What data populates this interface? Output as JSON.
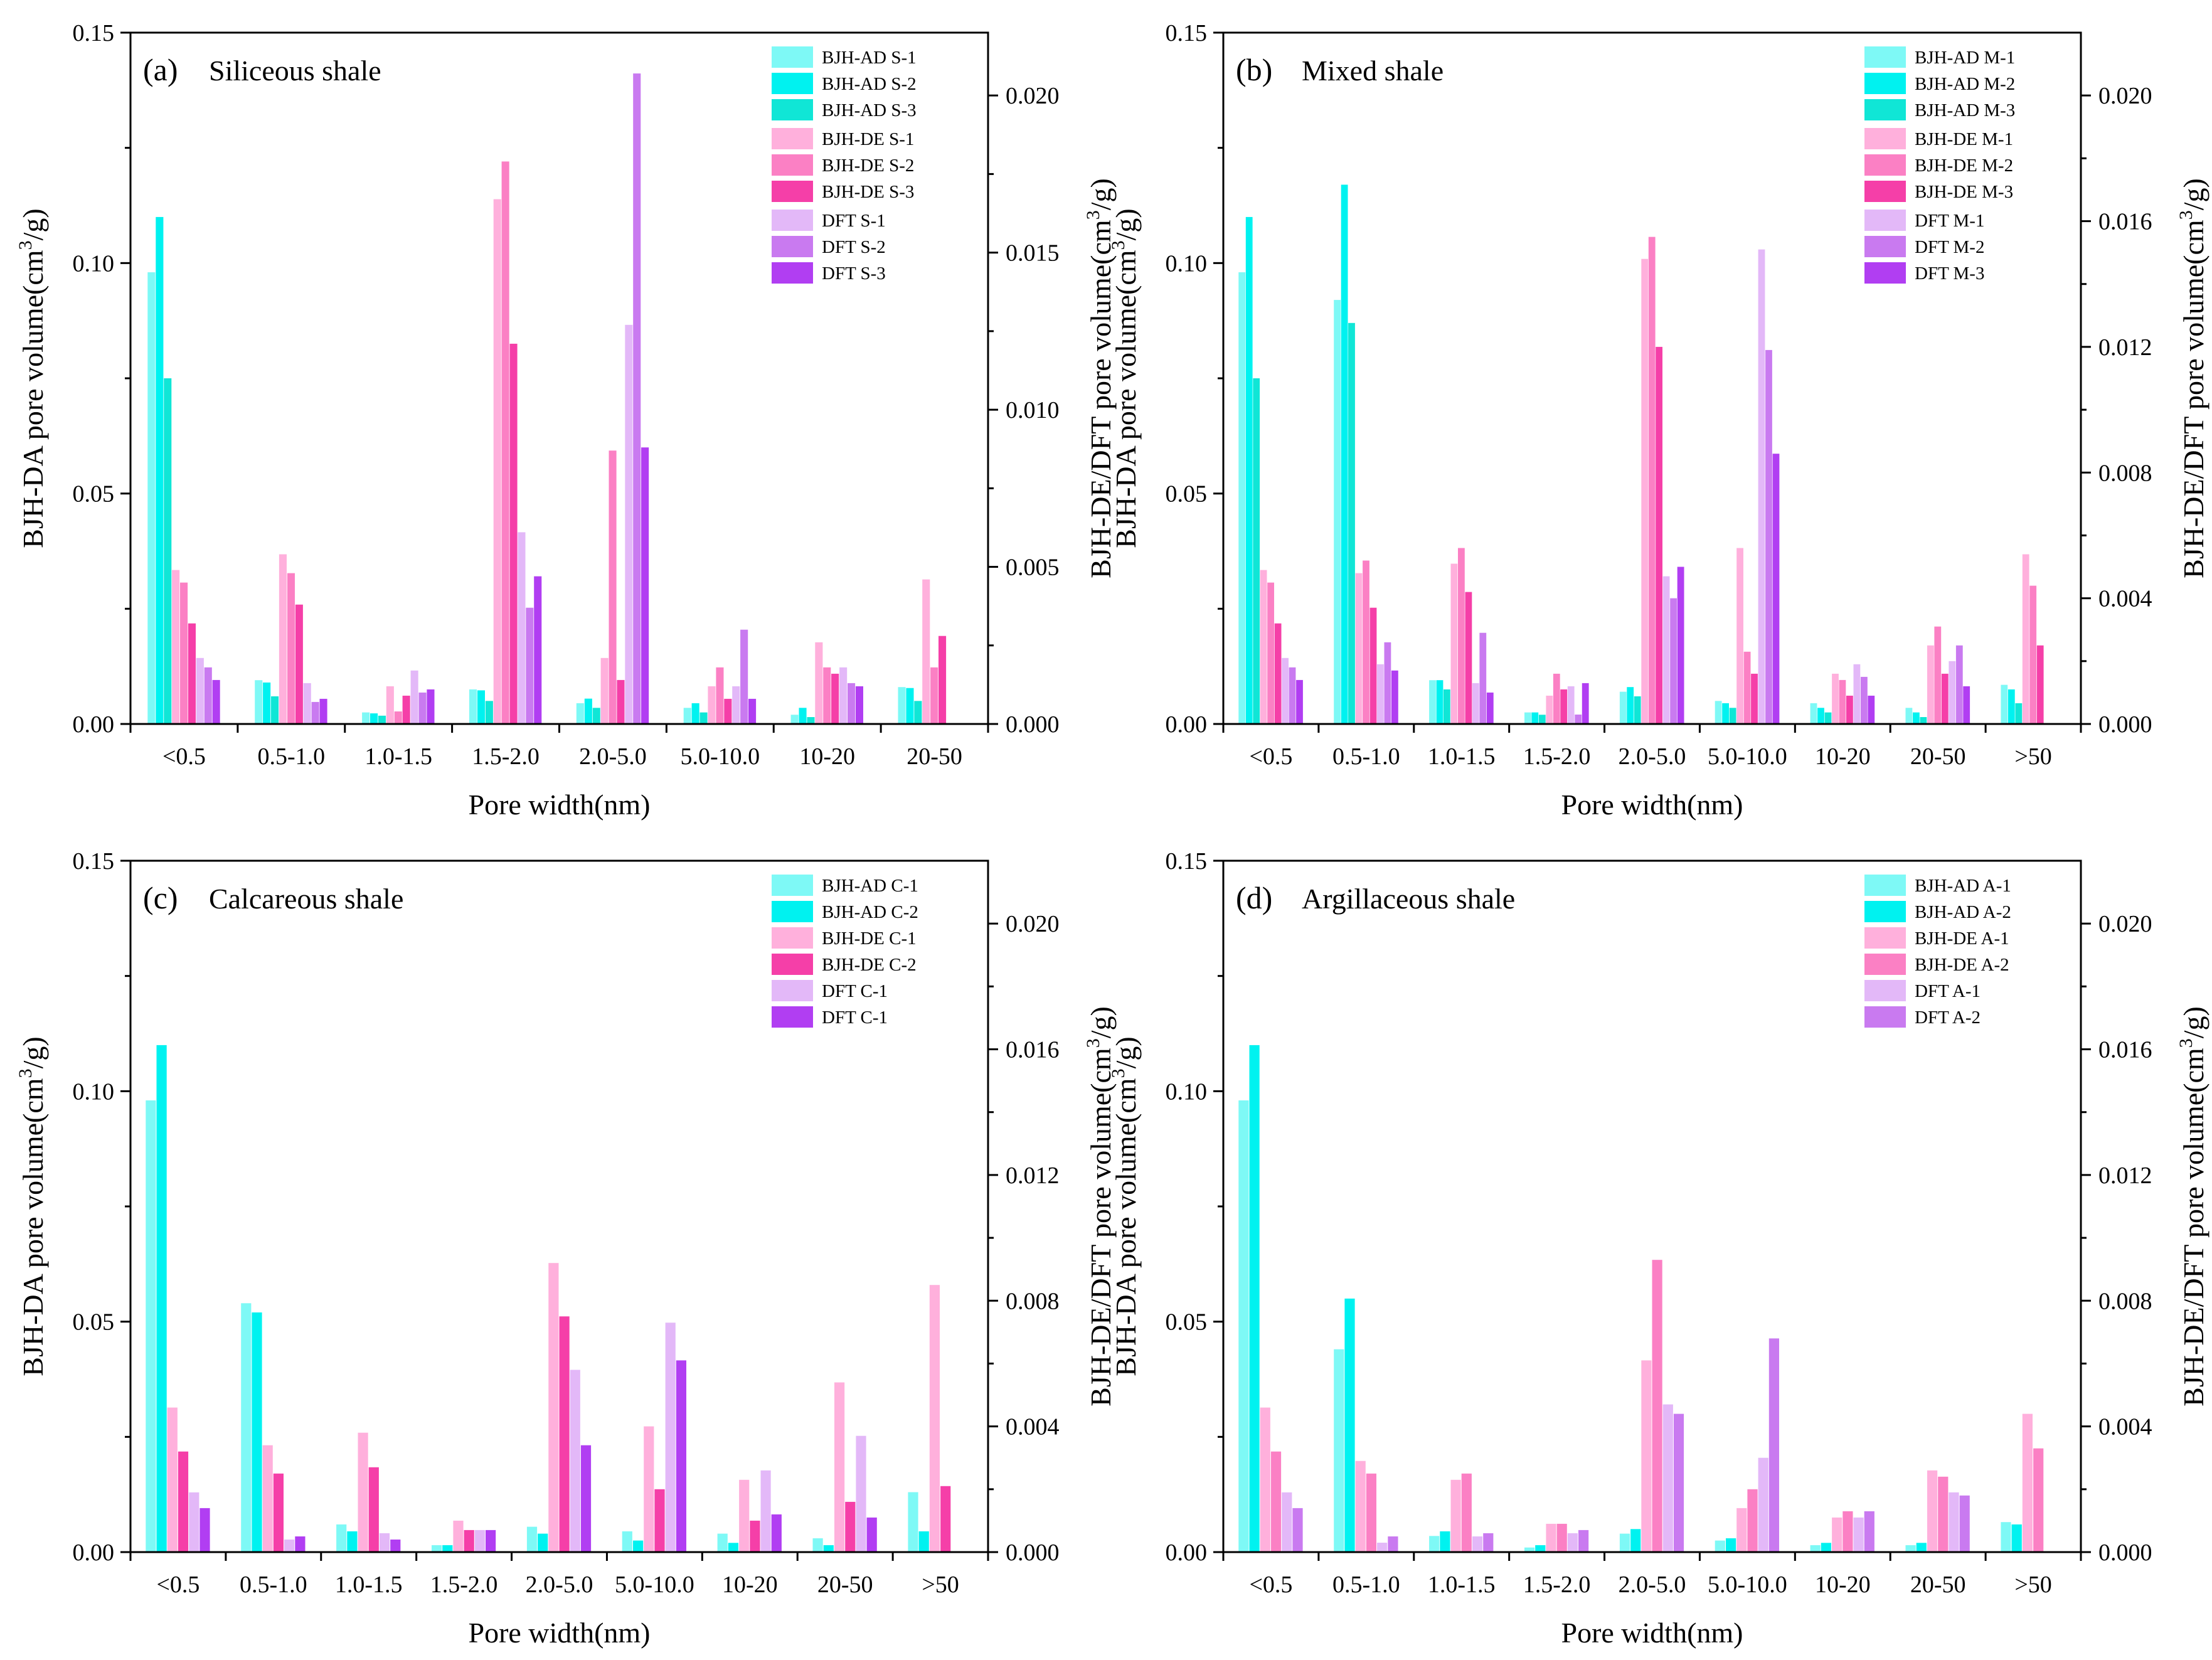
{
  "colors": {
    "BJH-AD-1": "#7ef9f6",
    "BJH-AD-2": "#00f2f0",
    "BJH-AD-3": "#10e6d6",
    "BJH-DE-1": "#ffb0dc",
    "BJH-DE-2": "#fb80c4",
    "BJH-DE-3": "#f53fa8",
    "DFT-1": "#e3b8f8",
    "DFT-2": "#c97af0",
    "DFT-3": "#b13ef2"
  },
  "chart_data": [
    {
      "type": "bar",
      "panel": "(a)",
      "title": "Siliceous shale",
      "xlabel": "Pore width(nm)",
      "ylabel_left": "BJH-DA pore volume(cm3/g)",
      "ylabel_right": "BJH-DE/DFT pore volume(cm3/g)",
      "ylim_left": [
        0,
        0.15
      ],
      "ylim_right": [
        0,
        0.022
      ],
      "yticks_left": [
        "0.00",
        "0.05",
        "0.10",
        "0.15"
      ],
      "yticks_right": [
        "0.000",
        "0.005",
        "0.010",
        "0.015",
        "0.020"
      ],
      "categories": [
        "<0.5",
        "0.5-1.0",
        "1.0-1.5",
        "1.5-2.0",
        "2.0-5.0",
        "5.0-10.0",
        "10-20",
        "20-50"
      ],
      "series": [
        {
          "name": "BJH-AD S-1",
          "group": "BJH-AD",
          "axis": "left",
          "color_key": "BJH-AD-1",
          "values": [
            0.098,
            0.0095,
            0.0025,
            0.0075,
            0.0045,
            0.0035,
            0.002,
            0.008
          ]
        },
        {
          "name": "BJH-AD S-2",
          "group": "BJH-AD",
          "axis": "left",
          "color_key": "BJH-AD-2",
          "values": [
            0.11,
            0.009,
            0.0023,
            0.0073,
            0.0055,
            0.0045,
            0.0035,
            0.0078
          ]
        },
        {
          "name": "BJH-AD S-3",
          "group": "BJH-AD",
          "axis": "left",
          "color_key": "BJH-AD-3",
          "values": [
            0.075,
            0.006,
            0.0018,
            0.005,
            0.0035,
            0.0025,
            0.0015,
            0.005
          ]
        },
        {
          "name": "BJH-DE S-1",
          "group": "BJH-DE",
          "axis": "right",
          "color_key": "BJH-DE-1",
          "values": [
            0.0049,
            0.0054,
            0.0012,
            0.0167,
            0.0021,
            0.0012,
            0.0026,
            0.0046
          ]
        },
        {
          "name": "BJH-DE S-2",
          "group": "BJH-DE",
          "axis": "right",
          "color_key": "BJH-DE-2",
          "values": [
            0.0045,
            0.0048,
            0.0004,
            0.0179,
            0.0087,
            0.0018,
            0.0018,
            0.0018
          ]
        },
        {
          "name": "BJH-DE S-3",
          "group": "BJH-DE",
          "axis": "right",
          "color_key": "BJH-DE-3",
          "values": [
            0.0032,
            0.0038,
            0.0009,
            0.0121,
            0.0014,
            0.0008,
            0.0016,
            0.0028
          ]
        },
        {
          "name": "DFT S-1",
          "group": "DFT",
          "axis": "right",
          "color_key": "DFT-1",
          "values": [
            0.0021,
            0.0013,
            0.0017,
            0.0061,
            0.0127,
            0.0012,
            0.0018,
            0.0
          ]
        },
        {
          "name": "DFT S-2",
          "group": "DFT",
          "axis": "right",
          "color_key": "DFT-2",
          "values": [
            0.0018,
            0.0007,
            0.001,
            0.0037,
            0.0207,
            0.003,
            0.0013,
            0.0
          ]
        },
        {
          "name": "DFT S-3",
          "group": "DFT",
          "axis": "right",
          "color_key": "DFT-3",
          "values": [
            0.0014,
            0.0008,
            0.0011,
            0.0047,
            0.0088,
            0.0008,
            0.0012,
            0.0
          ]
        }
      ]
    },
    {
      "type": "bar",
      "panel": "(b)",
      "title": "Mixed shale",
      "xlabel": "Pore width(nm)",
      "ylabel_left": "BJH-DA pore volume(cm3/g)",
      "ylabel_right": "BJH-DE/DFT pore volume(cm3/g)",
      "ylim_left": [
        0,
        0.15
      ],
      "ylim_right": [
        0,
        0.022
      ],
      "yticks_left": [
        "0.00",
        "0.05",
        "0.10",
        "0.15"
      ],
      "yticks_right": [
        "0.000",
        "0.004",
        "0.008",
        "0.012",
        "0.016",
        "0.020"
      ],
      "categories": [
        "<0.5",
        "0.5-1.0",
        "1.0-1.5",
        "1.5-2.0",
        "2.0-5.0",
        "5.0-10.0",
        "10-20",
        "20-50",
        ">50"
      ],
      "series": [
        {
          "name": "BJH-AD M-1",
          "group": "BJH-AD",
          "axis": "left",
          "color_key": "BJH-AD-1",
          "values": [
            0.098,
            0.092,
            0.0095,
            0.0025,
            0.007,
            0.005,
            0.0045,
            0.0035,
            0.0085
          ]
        },
        {
          "name": "BJH-AD M-2",
          "group": "BJH-AD",
          "axis": "left",
          "color_key": "BJH-AD-2",
          "values": [
            0.11,
            0.117,
            0.0095,
            0.0025,
            0.008,
            0.0045,
            0.0035,
            0.0025,
            0.0075
          ]
        },
        {
          "name": "BJH-AD M-3",
          "group": "BJH-AD",
          "axis": "left",
          "color_key": "BJH-AD-3",
          "values": [
            0.075,
            0.087,
            0.0075,
            0.002,
            0.006,
            0.0035,
            0.0025,
            0.0015,
            0.0045
          ]
        },
        {
          "name": "BJH-DE M-1",
          "group": "BJH-DE",
          "axis": "right",
          "color_key": "BJH-DE-1",
          "values": [
            0.0049,
            0.0048,
            0.0051,
            0.0009,
            0.0148,
            0.0056,
            0.0016,
            0.0025,
            0.0054
          ]
        },
        {
          "name": "BJH-DE M-2",
          "group": "BJH-DE",
          "axis": "right",
          "color_key": "BJH-DE-2",
          "values": [
            0.0045,
            0.0052,
            0.0056,
            0.0016,
            0.0155,
            0.0023,
            0.0014,
            0.0031,
            0.0044
          ]
        },
        {
          "name": "BJH-DE M-3",
          "group": "BJH-DE",
          "axis": "right",
          "color_key": "BJH-DE-3",
          "values": [
            0.0032,
            0.0037,
            0.0042,
            0.0011,
            0.012,
            0.0016,
            0.0009,
            0.0016,
            0.0025
          ]
        },
        {
          "name": "DFT M-1",
          "group": "DFT",
          "axis": "right",
          "color_key": "DFT-1",
          "values": [
            0.0021,
            0.0019,
            0.0013,
            0.0012,
            0.0047,
            0.0151,
            0.0019,
            0.002,
            0.0
          ]
        },
        {
          "name": "DFT M-2",
          "group": "DFT",
          "axis": "right",
          "color_key": "DFT-2",
          "values": [
            0.0018,
            0.0026,
            0.0029,
            0.0003,
            0.004,
            0.0119,
            0.0015,
            0.0025,
            0.0
          ]
        },
        {
          "name": "DFT M-3",
          "group": "DFT",
          "axis": "right",
          "color_key": "DFT-3",
          "values": [
            0.0014,
            0.0017,
            0.001,
            0.0013,
            0.005,
            0.0086,
            0.0009,
            0.0012,
            0.0
          ]
        }
      ]
    },
    {
      "type": "bar",
      "panel": "(c)",
      "title": "Calcareous shale",
      "xlabel": "Pore width(nm)",
      "ylabel_left": "BJH-DA pore volume(cm3/g)",
      "ylabel_right": "BJH-DE/DFT pore volume(cm3/g)",
      "ylim_left": [
        0,
        0.15
      ],
      "ylim_right": [
        0,
        0.022
      ],
      "yticks_left": [
        "0.00",
        "0.05",
        "0.10",
        "0.15"
      ],
      "yticks_right": [
        "0.000",
        "0.004",
        "0.008",
        "0.012",
        "0.016",
        "0.020"
      ],
      "categories": [
        "<0.5",
        "0.5-1.0",
        "1.0-1.5",
        "1.5-2.0",
        "2.0-5.0",
        "5.0-10.0",
        "10-20",
        "20-50",
        ">50"
      ],
      "series": [
        {
          "name": "BJH-AD C-1",
          "group": "BJH-AD",
          "axis": "left",
          "color_key": "BJH-AD-1",
          "values": [
            0.098,
            0.054,
            0.006,
            0.0015,
            0.0055,
            0.0045,
            0.004,
            0.003,
            0.013
          ]
        },
        {
          "name": "BJH-AD C-2",
          "group": "BJH-AD",
          "axis": "left",
          "color_key": "BJH-AD-2",
          "values": [
            0.11,
            0.052,
            0.0045,
            0.0015,
            0.004,
            0.0025,
            0.002,
            0.0015,
            0.0045
          ]
        },
        {
          "name": "BJH-DE C-1",
          "group": "BJH-DE",
          "axis": "right",
          "color_key": "BJH-DE-1",
          "values": [
            0.0046,
            0.0034,
            0.0038,
            0.001,
            0.0092,
            0.004,
            0.0023,
            0.0054,
            0.0085
          ]
        },
        {
          "name": "BJH-DE C-2",
          "group": "BJH-DE",
          "axis": "right",
          "color_key": "BJH-DE-3",
          "values": [
            0.0032,
            0.0025,
            0.0027,
            0.0007,
            0.0075,
            0.002,
            0.001,
            0.0016,
            0.0021
          ]
        },
        {
          "name": "DFT C-1",
          "group": "DFT",
          "axis": "right",
          "color_key": "DFT-1",
          "values": [
            0.0019,
            0.0004,
            0.0006,
            0.0007,
            0.0058,
            0.0073,
            0.0026,
            0.0037,
            0.0
          ]
        },
        {
          "name": "DFT C-1",
          "group": "DFT",
          "axis": "right",
          "color_key": "DFT-3",
          "values": [
            0.0014,
            0.0005,
            0.0004,
            0.0007,
            0.0034,
            0.0061,
            0.0012,
            0.0011,
            0.0
          ]
        }
      ]
    },
    {
      "type": "bar",
      "panel": "(d)",
      "title": "Argillaceous shale",
      "xlabel": "Pore width(nm)",
      "ylabel_left": "BJH-DA pore volume(cm3/g)",
      "ylabel_right": "BJH-DE/DFT pore volume(cm3/g)",
      "ylim_left": [
        0,
        0.15
      ],
      "ylim_right": [
        0,
        0.022
      ],
      "yticks_left": [
        "0.00",
        "0.05",
        "0.10",
        "0.15"
      ],
      "yticks_right": [
        "0.000",
        "0.004",
        "0.008",
        "0.012",
        "0.016",
        "0.020"
      ],
      "categories": [
        "<0.5",
        "0.5-1.0",
        "1.0-1.5",
        "1.5-2.0",
        "2.0-5.0",
        "5.0-10.0",
        "10-20",
        "20-50",
        ">50"
      ],
      "series": [
        {
          "name": "BJH-AD A-1",
          "group": "BJH-AD",
          "axis": "left",
          "color_key": "BJH-AD-1",
          "values": [
            0.098,
            0.044,
            0.0035,
            0.001,
            0.004,
            0.0025,
            0.0015,
            0.0015,
            0.0065
          ]
        },
        {
          "name": "BJH-AD A-2",
          "group": "BJH-AD",
          "axis": "left",
          "color_key": "BJH-AD-2",
          "values": [
            0.11,
            0.055,
            0.0045,
            0.0015,
            0.005,
            0.003,
            0.002,
            0.002,
            0.006
          ]
        },
        {
          "name": "BJH-DE A-1",
          "group": "BJH-DE",
          "axis": "right",
          "color_key": "BJH-DE-1",
          "values": [
            0.0046,
            0.0029,
            0.0023,
            0.0009,
            0.0061,
            0.0014,
            0.0011,
            0.0026,
            0.0044
          ]
        },
        {
          "name": "BJH-DE A-2",
          "group": "BJH-DE",
          "axis": "right",
          "color_key": "BJH-DE-2",
          "values": [
            0.0032,
            0.0025,
            0.0025,
            0.0009,
            0.0093,
            0.002,
            0.0013,
            0.0024,
            0.0033
          ]
        },
        {
          "name": "DFT A-1",
          "group": "DFT",
          "axis": "right",
          "color_key": "DFT-1",
          "values": [
            0.0019,
            0.0003,
            0.0005,
            0.0006,
            0.0047,
            0.003,
            0.0011,
            0.0019,
            0.0
          ]
        },
        {
          "name": "DFT A-2",
          "group": "DFT",
          "axis": "right",
          "color_key": "DFT-2",
          "values": [
            0.0014,
            0.0005,
            0.0006,
            0.0007,
            0.0044,
            0.0068,
            0.0013,
            0.0018,
            0.0
          ]
        }
      ]
    }
  ]
}
